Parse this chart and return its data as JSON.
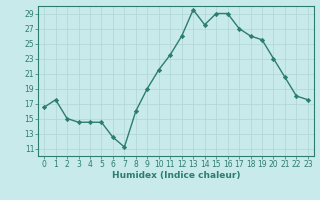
{
  "x": [
    0,
    1,
    2,
    3,
    4,
    5,
    6,
    7,
    8,
    9,
    10,
    11,
    12,
    13,
    14,
    15,
    16,
    17,
    18,
    19,
    20,
    21,
    22,
    23
  ],
  "y": [
    16.5,
    17.5,
    15.0,
    14.5,
    14.5,
    14.5,
    12.5,
    11.2,
    16.0,
    19.0,
    21.5,
    23.5,
    26.0,
    29.5,
    27.5,
    29.0,
    29.0,
    27.0,
    26.0,
    25.5,
    23.0,
    20.5,
    18.0,
    17.5
  ],
  "line_color": "#2d7d6f",
  "marker": "D",
  "markersize": 2.2,
  "linewidth": 1.0,
  "bg_color": "#c8eaea",
  "grid_color": "#b0d4d4",
  "xlabel": "Humidex (Indice chaleur)",
  "xlim": [
    -0.5,
    23.5
  ],
  "ylim": [
    10,
    30
  ],
  "yticks": [
    11,
    13,
    15,
    17,
    19,
    21,
    23,
    25,
    27,
    29
  ],
  "xticks": [
    0,
    1,
    2,
    3,
    4,
    5,
    6,
    7,
    8,
    9,
    10,
    11,
    12,
    13,
    14,
    15,
    16,
    17,
    18,
    19,
    20,
    21,
    22,
    23
  ],
  "tick_color": "#2d7d6f",
  "label_fontsize": 6.5,
  "tick_fontsize": 5.5
}
